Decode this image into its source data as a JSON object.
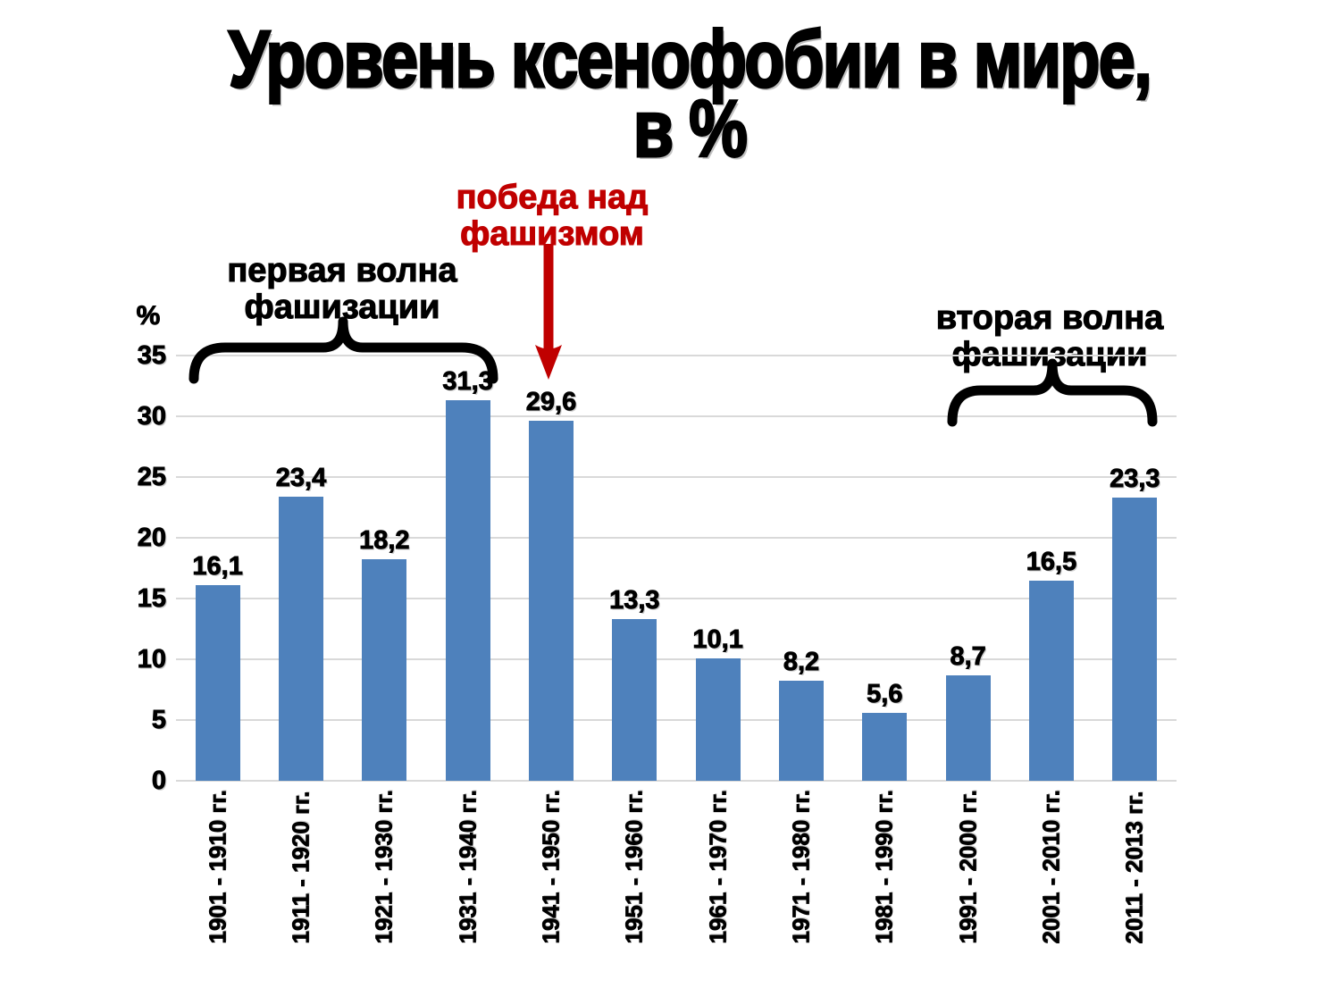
{
  "title": {
    "line1": "Уровень ксенофобии в мире,",
    "line2": "в %"
  },
  "annotations": {
    "victory_over_fascism": {
      "line1": "победа над",
      "line2": "фашизмом",
      "color": "#c00000"
    },
    "first_wave": {
      "line1": "первая волна",
      "line2": "фашизации"
    },
    "second_wave": {
      "line1": "вторая волна",
      "line2": "фашизации"
    }
  },
  "y_axis": {
    "unit_label": "%"
  },
  "chart_data": {
    "type": "bar",
    "title": "Уровень ксенофобии в мире, в %",
    "categories": [
      "1901 - 1910 гг.",
      "1911 - 1920 гг.",
      "1921 - 1930 гг.",
      "1931 - 1940 гг.",
      "1941 - 1950 гг.",
      "1951 - 1960 гг.",
      "1961 - 1970 гг.",
      "1971 - 1980 гг.",
      "1981 - 1990 гг.",
      "1991 - 2000 гг.",
      "2001 - 2010 гг.",
      "2011 - 2013 гг."
    ],
    "values": [
      16.1,
      23.4,
      18.2,
      31.3,
      29.6,
      13.3,
      10.1,
      8.2,
      5.6,
      8.7,
      16.5,
      23.3
    ],
    "value_labels": [
      "16,1",
      "23,4",
      "18,2",
      "31,3",
      "29,6",
      "13,3",
      "10,1",
      "8,2",
      "5,6",
      "8,7",
      "16,5",
      "23,3"
    ],
    "xlabel": "",
    "ylabel": "%",
    "ylim": [
      0,
      35
    ],
    "yticks": [
      0,
      5,
      10,
      15,
      20,
      25,
      30,
      35
    ],
    "grid": true,
    "legend": false,
    "bar_color": "#4e81bc",
    "grid_color": "#d9d9d9",
    "annotation_red": "#c00000"
  }
}
